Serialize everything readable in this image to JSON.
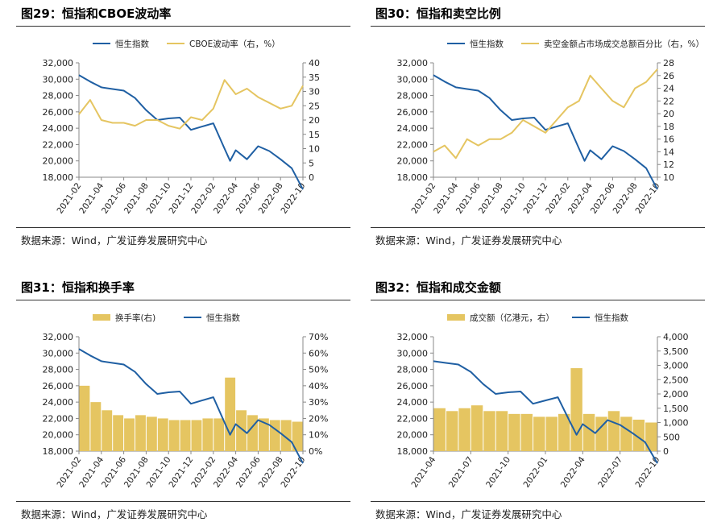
{
  "colors": {
    "hsi": "#1f5fa3",
    "gold": "#e5c561",
    "axis": "#888888"
  },
  "charts": [
    {
      "title": "图29：恒指和CBOE波动率",
      "source": "数据来源：Wind，广发证券发展研究中心",
      "chart_data": {
        "type": "line",
        "series": [
          {
            "name": "恒生指数",
            "kind": "line",
            "axis": "left",
            "color": "#1f5fa3",
            "x": [
              "2021-02",
              "2021-03",
              "2021-04",
              "2021-05",
              "2021-06",
              "2021-07",
              "2021-08",
              "2021-09",
              "2021-10",
              "2021-11",
              "2021-12",
              "2022-01",
              "2022-02",
              "2022-03",
              "2022-03",
              "2022-04",
              "2022-05",
              "2022-06",
              "2022-07",
              "2022-08",
              "2022-09",
              "2022-10"
            ],
            "values": [
              30500,
              29700,
              29000,
              28800,
              28600,
              27700,
              26200,
              25000,
              25200,
              25300,
              23800,
              24200,
              24600,
              21500,
              20000,
              21300,
              20200,
              21800,
              21200,
              20200,
              19100,
              16500
            ]
          },
          {
            "name": "CBOE波动率（右，%）",
            "kind": "line",
            "axis": "right",
            "color": "#e5c561",
            "x": [
              "2021-02",
              "2021-03",
              "2021-04",
              "2021-05",
              "2021-06",
              "2021-07",
              "2021-08",
              "2021-09",
              "2021-10",
              "2021-11",
              "2021-12",
              "2022-01",
              "2022-02",
              "2022-03",
              "2022-04",
              "2022-05",
              "2022-06",
              "2022-07",
              "2022-08",
              "2022-09",
              "2022-10"
            ],
            "values": [
              22,
              27,
              20,
              19,
              19,
              18,
              20,
              20,
              18,
              17,
              21,
              20,
              24,
              34,
              29,
              31,
              28,
              26,
              24,
              25,
              32
            ]
          }
        ],
        "x_ticks": [
          "2021-02",
          "2021-04",
          "2021-06",
          "2021-08",
          "2021-10",
          "2021-12",
          "2022-02",
          "2022-04",
          "2022-06",
          "2022-08",
          "2022-10"
        ],
        "y_left": {
          "min": 18000,
          "max": 32000,
          "step": 2000,
          "labels": [
            "18,000",
            "20,000",
            "22,000",
            "24,000",
            "26,000",
            "28,000",
            "30,000",
            "32,000"
          ]
        },
        "y_right": {
          "min": 0,
          "max": 40,
          "step": 5,
          "labels": [
            "0",
            "5",
            "10",
            "15",
            "20",
            "25",
            "30",
            "35",
            "40"
          ]
        },
        "legend": [
          "恒生指数",
          "CBOE波动率（右，%）"
        ],
        "legend_position": "top"
      }
    },
    {
      "title": "图30：恒指和卖空比例",
      "source": "数据来源：Wind，广发证券发展研究中心",
      "chart_data": {
        "type": "line",
        "series": [
          {
            "name": "恒生指数",
            "kind": "line",
            "axis": "left",
            "color": "#1f5fa3",
            "x": [
              "2021-02",
              "2021-03",
              "2021-04",
              "2021-05",
              "2021-06",
              "2021-07",
              "2021-08",
              "2021-09",
              "2021-10",
              "2021-11",
              "2021-12",
              "2022-01",
              "2022-02",
              "2022-03",
              "2022-03",
              "2022-04",
              "2022-05",
              "2022-06",
              "2022-07",
              "2022-08",
              "2022-09",
              "2022-10"
            ],
            "values": [
              30500,
              29700,
              29000,
              28800,
              28600,
              27700,
              26200,
              25000,
              25200,
              25300,
              23800,
              24200,
              24600,
              21500,
              20000,
              21300,
              20200,
              21800,
              21200,
              20200,
              19100,
              16500
            ]
          },
          {
            "name": "卖空金额占市场成交总额百分比（右，%）",
            "kind": "line",
            "axis": "right",
            "color": "#e5c561",
            "x": [
              "2021-02",
              "2021-03",
              "2021-04",
              "2021-05",
              "2021-06",
              "2021-07",
              "2021-08",
              "2021-09",
              "2021-10",
              "2021-11",
              "2021-12",
              "2022-01",
              "2022-02",
              "2022-03",
              "2022-04",
              "2022-05",
              "2022-06",
              "2022-07",
              "2022-08",
              "2022-09",
              "2022-10"
            ],
            "values": [
              14,
              15,
              13,
              16,
              15,
              16,
              16,
              17,
              19,
              18,
              17,
              19,
              21,
              22,
              26,
              24,
              22,
              21,
              24,
              25,
              27
            ]
          }
        ],
        "x_ticks": [
          "2021-02",
          "2021-04",
          "2021-06",
          "2021-08",
          "2021-10",
          "2021-12",
          "2022-02",
          "2022-04",
          "2022-06",
          "2022-08",
          "2022-10"
        ],
        "y_left": {
          "min": 18000,
          "max": 32000,
          "step": 2000,
          "labels": [
            "18,000",
            "20,000",
            "22,000",
            "24,000",
            "26,000",
            "28,000",
            "30,000",
            "32,000"
          ]
        },
        "y_right": {
          "min": 10,
          "max": 28,
          "step": 2,
          "labels": [
            "10",
            "12",
            "14",
            "16",
            "18",
            "20",
            "22",
            "24",
            "26",
            "28"
          ]
        },
        "legend": [
          "恒生指数",
          "卖空金额占市场成交总额百分比（右，%）"
        ],
        "legend_position": "top"
      }
    },
    {
      "title": "图31：恒指和换手率",
      "source": "数据来源：Wind，广发证券发展研究中心",
      "chart_data": {
        "type": "bar",
        "series": [
          {
            "name": "换手率(右)",
            "kind": "bar",
            "axis": "right",
            "color": "#e5c561",
            "x": [
              "2021-02",
              "2021-03",
              "2021-04",
              "2021-05",
              "2021-06",
              "2021-07",
              "2021-08",
              "2021-09",
              "2021-10",
              "2021-11",
              "2021-12",
              "2022-01",
              "2022-02",
              "2022-03",
              "2022-04",
              "2022-05",
              "2022-06",
              "2022-07",
              "2022-08",
              "2022-09",
              "2022-10"
            ],
            "values": [
              40,
              30,
              25,
              22,
              20,
              22,
              21,
              20,
              19,
              19,
              19,
              20,
              20,
              45,
              25,
              22,
              20,
              19,
              19,
              18,
              18
            ]
          },
          {
            "name": "恒生指数",
            "kind": "line",
            "axis": "left",
            "color": "#1f5fa3",
            "x": [
              "2021-02",
              "2021-03",
              "2021-04",
              "2021-05",
              "2021-06",
              "2021-07",
              "2021-08",
              "2021-09",
              "2021-10",
              "2021-11",
              "2021-12",
              "2022-01",
              "2022-02",
              "2022-03",
              "2022-03",
              "2022-04",
              "2022-05",
              "2022-06",
              "2022-07",
              "2022-08",
              "2022-09",
              "2022-10"
            ],
            "values": [
              30500,
              29700,
              29000,
              28800,
              28600,
              27700,
              26200,
              25000,
              25200,
              25300,
              23800,
              24200,
              24600,
              21500,
              20000,
              21300,
              20200,
              21800,
              21200,
              20200,
              19100,
              16500
            ]
          }
        ],
        "x_ticks": [
          "2021-02",
          "2021-04",
          "2021-06",
          "2021-08",
          "2021-10",
          "2021-12",
          "2022-02",
          "2022-04",
          "2022-06",
          "2022-08",
          "2022-10"
        ],
        "y_left": {
          "min": 18000,
          "max": 32000,
          "step": 2000,
          "labels": [
            "18,000",
            "20,000",
            "22,000",
            "24,000",
            "26,000",
            "28,000",
            "30,000",
            "32,000"
          ]
        },
        "y_right": {
          "min": 0,
          "max": 70,
          "step": 10,
          "labels": [
            "0%",
            "10%",
            "20%",
            "30%",
            "40%",
            "50%",
            "60%",
            "70%"
          ]
        },
        "legend": [
          "换手率(右)",
          "恒生指数"
        ],
        "legend_position": "top"
      }
    },
    {
      "title": "图32：恒指和成交金额",
      "source": "数据来源：Wind，广发证券发展研究中心",
      "chart_data": {
        "type": "bar",
        "series": [
          {
            "name": "成交额（亿港元，右）",
            "kind": "bar",
            "axis": "right",
            "color": "#e5c561",
            "x": [
              "2021-04",
              "2021-05",
              "2021-06",
              "2021-07",
              "2021-08",
              "2021-09",
              "2021-10",
              "2021-11",
              "2021-12",
              "2022-01",
              "2022-02",
              "2022-03",
              "2022-04",
              "2022-05",
              "2022-06",
              "2022-07",
              "2022-08",
              "2022-09",
              "2022-10"
            ],
            "values": [
              1500,
              1400,
              1500,
              1600,
              1400,
              1400,
              1300,
              1300,
              1200,
              1200,
              1300,
              2900,
              1300,
              1200,
              1400,
              1200,
              1100,
              1000,
              1100
            ]
          },
          {
            "name": "恒生指数",
            "kind": "line",
            "axis": "left",
            "color": "#1f5fa3",
            "x": [
              "2021-04",
              "2021-05",
              "2021-06",
              "2021-07",
              "2021-08",
              "2021-09",
              "2021-10",
              "2021-11",
              "2021-12",
              "2022-01",
              "2022-02",
              "2022-03",
              "2022-03",
              "2022-04",
              "2022-05",
              "2022-06",
              "2022-07",
              "2022-08",
              "2022-09",
              "2022-10"
            ],
            "values": [
              29000,
              28800,
              28600,
              27700,
              26200,
              25000,
              25200,
              25300,
              23800,
              24200,
              24600,
              21500,
              20000,
              21300,
              20200,
              21800,
              21200,
              20200,
              19100,
              16500
            ]
          }
        ],
        "x_ticks": [
          "2021-04",
          "2021-07",
          "2021-10",
          "2022-01",
          "2022-04",
          "2022-07",
          "2022-10"
        ],
        "y_left": {
          "min": 18000,
          "max": 32000,
          "step": 2000,
          "labels": [
            "18,000",
            "20,000",
            "22,000",
            "24,000",
            "26,000",
            "28,000",
            "30,000",
            "32,000"
          ]
        },
        "y_right": {
          "min": 0,
          "max": 4000,
          "step": 500,
          "labels": [
            "0",
            "500",
            "1,000",
            "1,500",
            "2,000",
            "2,500",
            "3,000",
            "3,500",
            "4,000"
          ]
        },
        "legend": [
          "成交额（亿港元，右）",
          "恒生指数"
        ],
        "legend_position": "top"
      }
    }
  ]
}
